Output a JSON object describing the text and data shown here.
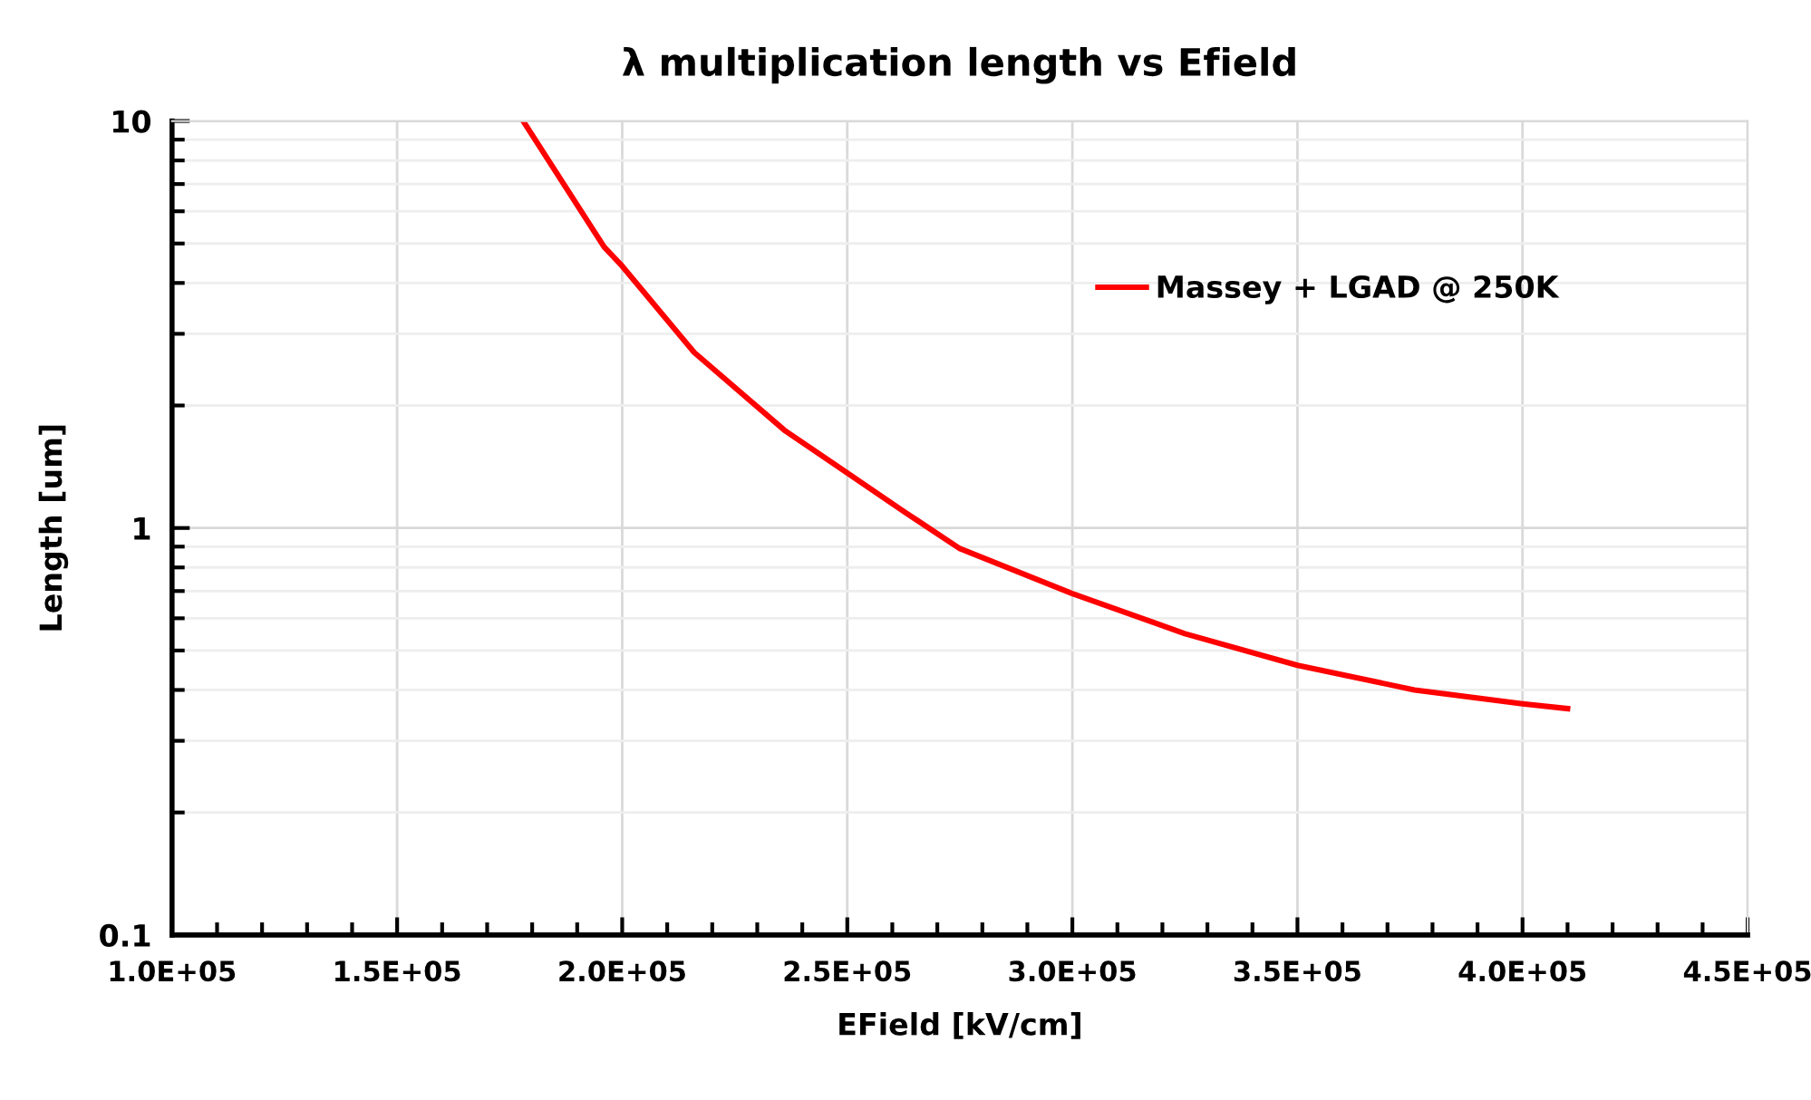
{
  "chart_data": {
    "type": "line",
    "title": "λ multiplication length vs Efield",
    "xlabel": "EField [kV/cm]",
    "ylabel": "Length [um]",
    "series": [
      {
        "name": "Massey + LGAD @ 250K",
        "color": "#ff0000",
        "x": [
          178000,
          196000,
          200000,
          216000,
          236000,
          263000,
          275000,
          300000,
          325000,
          350000,
          376000,
          400000,
          410000
        ],
        "values": [
          10,
          4.9,
          4.4,
          2.7,
          1.74,
          1.09,
          0.89,
          0.69,
          0.55,
          0.46,
          0.4,
          0.37,
          0.36
        ]
      }
    ],
    "log": "y",
    "xlim": [
      100000,
      450000
    ],
    "ylim": [
      0.1,
      10
    ],
    "xticks": [
      {
        "value": 100000,
        "label": "1.0E+05"
      },
      {
        "value": 150000,
        "label": "1.5E+05"
      },
      {
        "value": 200000,
        "label": "2.0E+05"
      },
      {
        "value": 250000,
        "label": "2.5E+05"
      },
      {
        "value": 300000,
        "label": "3.0E+05"
      },
      {
        "value": 350000,
        "label": "3.5E+05"
      },
      {
        "value": 400000,
        "label": "4.0E+05"
      },
      {
        "value": 450000,
        "label": "4.5E+05"
      }
    ],
    "yticks": [
      0.1,
      1,
      10
    ],
    "grid": true,
    "legend": "top right",
    "marker": "none",
    "line_style": "solid"
  }
}
